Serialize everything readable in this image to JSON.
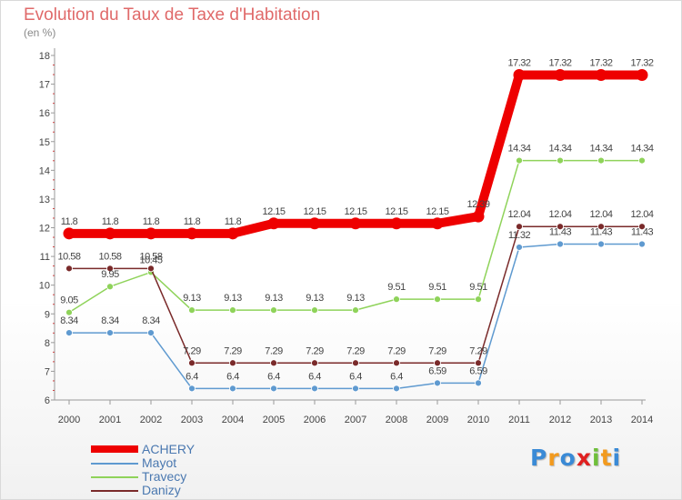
{
  "chart_data": {
    "type": "line",
    "title": "Evolution du Taux de Taxe d'Habitation",
    "subtitle": "(en %)",
    "x": [
      "2000",
      "2001",
      "2002",
      "2003",
      "2004",
      "2005",
      "2006",
      "2007",
      "2008",
      "2009",
      "2010",
      "2011",
      "2012",
      "2013",
      "2014"
    ],
    "ylim": [
      6,
      18
    ],
    "yticks": [
      "6",
      "7",
      "8",
      "9",
      "10",
      "11",
      "12",
      "13",
      "14",
      "15",
      "16",
      "17",
      "18"
    ],
    "legend_position": "bottom-left",
    "grid": false,
    "series": [
      {
        "name": "ACHERY",
        "color": "#ee0000",
        "values": [
          11.8,
          11.8,
          11.8,
          11.8,
          11.8,
          12.15,
          12.15,
          12.15,
          12.15,
          12.15,
          12.39,
          17.32,
          17.32,
          17.32,
          17.32
        ],
        "labels": [
          "11.8",
          "11.8",
          "11.8",
          "11.8",
          "11.8",
          "12.15",
          "12.15",
          "12.15",
          "12.15",
          "12.15",
          "12.39",
          "17.32",
          "17.32",
          "17.32",
          "17.32"
        ]
      },
      {
        "name": "Mayot",
        "color": "#5f9ad0",
        "values": [
          8.34,
          8.34,
          8.34,
          6.4,
          6.4,
          6.4,
          6.4,
          6.4,
          6.4,
          6.59,
          6.59,
          11.32,
          11.43,
          11.43,
          11.43
        ],
        "labels": [
          "8.34",
          "8.34",
          "8.34",
          "6.4",
          "6.4",
          "6.4",
          "6.4",
          "6.4",
          "6.4",
          "6.59",
          "6.59",
          "11.32",
          "11.43",
          "11.43",
          "11.43"
        ]
      },
      {
        "name": "Travecy",
        "color": "#8fd35a",
        "values": [
          9.05,
          9.95,
          10.45,
          9.13,
          9.13,
          9.13,
          9.13,
          9.13,
          9.51,
          9.51,
          9.51,
          14.34,
          14.34,
          14.34,
          14.34
        ],
        "labels": [
          "9.05",
          "9.95",
          "10.45",
          "9.13",
          "9.13",
          "9.13",
          "9.13",
          "9.13",
          "9.51",
          "9.51",
          "9.51",
          "14.34",
          "14.34",
          "14.34",
          "14.34"
        ]
      },
      {
        "name": "Danizy",
        "color": "#7a2a2a",
        "values": [
          10.58,
          10.58,
          10.58,
          7.29,
          7.29,
          7.29,
          7.29,
          7.29,
          7.29,
          7.29,
          7.29,
          12.04,
          12.04,
          12.04,
          12.04
        ],
        "labels": [
          "10.58",
          "10.58",
          "10.58",
          "7.29",
          "7.29",
          "7.29",
          "7.29",
          "7.29",
          "7.29",
          "7.29",
          "7.29",
          "12.04",
          "12.04",
          "12.04",
          "12.04"
        ]
      }
    ]
  },
  "brand": {
    "text": "Proxiti",
    "letters": [
      "P",
      "r",
      "o",
      "x",
      "i",
      "t",
      "i"
    ],
    "colors": [
      "#3a8ad6",
      "#f29a1e",
      "#3a8ad6",
      "#e02020",
      "#6fbf3a",
      "#f29a1e",
      "#3a8ad6"
    ]
  }
}
